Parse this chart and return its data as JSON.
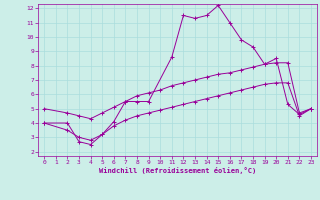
{
  "xlabel": "Windchill (Refroidissement éolien,°C)",
  "bg_color": "#cceee8",
  "line_color": "#990099",
  "grid_color": "#aadddd",
  "xlim": [
    -0.5,
    23.5
  ],
  "ylim": [
    1.7,
    12.3
  ],
  "xticks": [
    0,
    1,
    2,
    3,
    4,
    5,
    6,
    7,
    8,
    9,
    10,
    11,
    12,
    13,
    14,
    15,
    16,
    17,
    18,
    19,
    20,
    21,
    22,
    23
  ],
  "yticks": [
    2,
    3,
    4,
    5,
    6,
    7,
    8,
    9,
    10,
    11,
    12
  ],
  "curve1_x": [
    0,
    2,
    3,
    4,
    5,
    6,
    7,
    8,
    9,
    11,
    12,
    13,
    14,
    15,
    16,
    17,
    18,
    19,
    20,
    21,
    22,
    23
  ],
  "curve1_y": [
    4.0,
    4.0,
    2.7,
    2.5,
    3.2,
    4.1,
    5.5,
    5.5,
    5.5,
    8.6,
    11.5,
    11.3,
    11.5,
    12.2,
    11.0,
    9.8,
    9.3,
    8.1,
    8.5,
    5.3,
    4.6,
    5.0
  ],
  "curve2_x": [
    0,
    2,
    3,
    4,
    5,
    6,
    7,
    8,
    9,
    10,
    11,
    12,
    13,
    14,
    15,
    16,
    17,
    18,
    19,
    20,
    21,
    22,
    23
  ],
  "curve2_y": [
    5.0,
    4.7,
    4.5,
    4.3,
    4.7,
    5.1,
    5.5,
    5.9,
    6.1,
    6.3,
    6.6,
    6.8,
    7.0,
    7.2,
    7.4,
    7.5,
    7.7,
    7.9,
    8.1,
    8.2,
    8.2,
    4.7,
    5.0
  ],
  "curve3_x": [
    0,
    2,
    3,
    4,
    5,
    6,
    7,
    8,
    9,
    10,
    11,
    12,
    13,
    14,
    15,
    16,
    17,
    18,
    19,
    20,
    21,
    22,
    23
  ],
  "curve3_y": [
    4.0,
    3.5,
    3.0,
    2.8,
    3.2,
    3.8,
    4.2,
    4.5,
    4.7,
    4.9,
    5.1,
    5.3,
    5.5,
    5.7,
    5.9,
    6.1,
    6.3,
    6.5,
    6.7,
    6.8,
    6.8,
    4.5,
    5.0
  ]
}
